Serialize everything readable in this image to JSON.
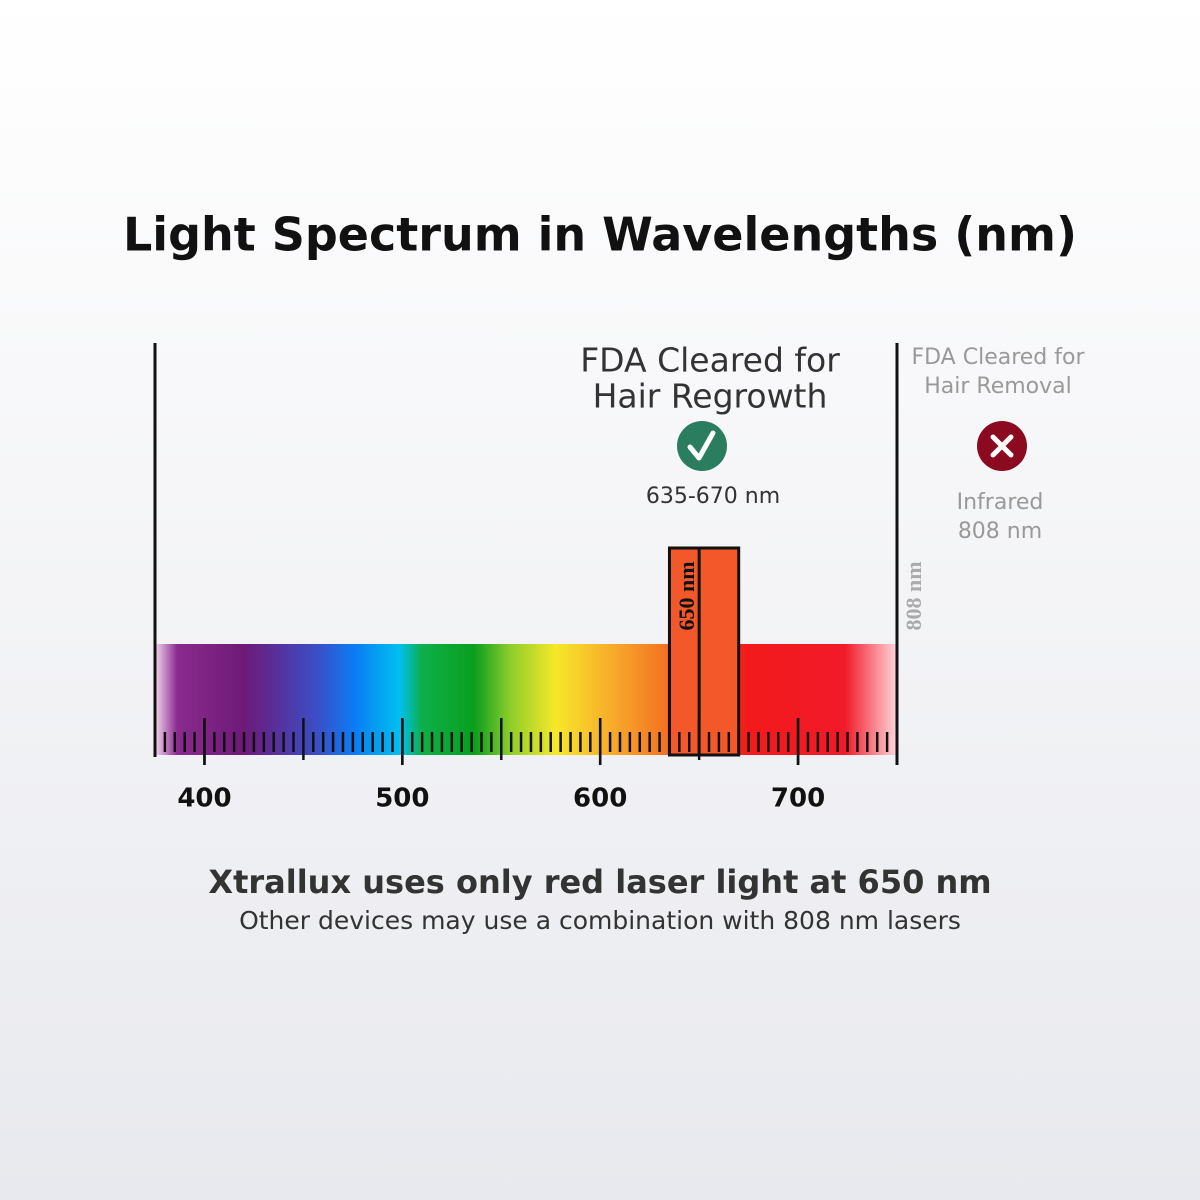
{
  "title": "Light Spectrum in Wavelengths (nm)",
  "scale": {
    "range": [
      375,
      750
    ],
    "ticks": [
      400,
      500,
      600,
      700
    ]
  },
  "regrowth": {
    "label": [
      "FDA Cleared for",
      "Hair Regrowth"
    ],
    "range_label": "635-670 nm",
    "start": 635,
    "end": 670,
    "center": 650,
    "center_label": "650 nm"
  },
  "removal": {
    "label": [
      "FDA Cleared for",
      "Hair Removal"
    ],
    "detail": [
      "Infrared",
      "808 nm"
    ],
    "edge_label": "808 nm"
  },
  "footer": {
    "heading": "Xtrallux uses only red laser light at 650 nm",
    "subheading": "Other devices may use a combination with 808 nm lasers"
  }
}
